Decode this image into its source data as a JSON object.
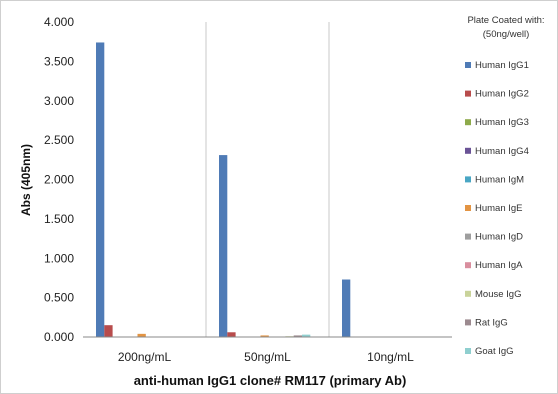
{
  "chart_data": {
    "type": "bar",
    "xlabel": "anti-human IgG1 clone# RM117 (primary Ab)",
    "ylabel": "Abs (405nm)",
    "ylim": [
      0,
      4.0
    ],
    "yticks": [
      "0.000",
      "0.500",
      "1.000",
      "1.500",
      "2.000",
      "2.500",
      "3.000",
      "3.500",
      "4.000"
    ],
    "categories": [
      "200ng/mL",
      "50ng/mL",
      "10ng/mL"
    ],
    "grid": "vertical-separators",
    "legend_position": "right",
    "legend_title": [
      "Plate Coated with:",
      "(50ng/well)"
    ],
    "series": [
      {
        "name": "Human IgG1",
        "color": "#4F7BB6",
        "values": [
          3.74,
          2.31,
          0.73
        ]
      },
      {
        "name": "Human IgG2",
        "color": "#B84C4C",
        "values": [
          0.15,
          0.06,
          0.0
        ]
      },
      {
        "name": "Human IgG3",
        "color": "#8DAA4A",
        "values": [
          0.0,
          0.0,
          0.0
        ]
      },
      {
        "name": "Human IgG4",
        "color": "#6A5396",
        "values": [
          0.0,
          0.0,
          0.0
        ]
      },
      {
        "name": "Human IgM",
        "color": "#49A6C4",
        "values": [
          0.0,
          0.0,
          0.0
        ]
      },
      {
        "name": "Human IgE",
        "color": "#E39443",
        "values": [
          0.04,
          0.02,
          0.0
        ]
      },
      {
        "name": "Human IgD",
        "color": "#9E9E9E",
        "values": [
          0.0,
          0.0,
          0.0
        ]
      },
      {
        "name": "Human IgA",
        "color": "#D98E9E",
        "values": [
          0.0,
          0.0,
          0.0
        ]
      },
      {
        "name": "Mouse IgG",
        "color": "#C9D39A",
        "values": [
          0.0,
          0.01,
          0.0
        ]
      },
      {
        "name": "Rat IgG",
        "color": "#9C8A8F",
        "values": [
          0.0,
          0.02,
          0.0
        ]
      },
      {
        "name": "Goat IgG",
        "color": "#8FCFCF",
        "values": [
          0.0,
          0.03,
          0.0
        ]
      }
    ]
  }
}
